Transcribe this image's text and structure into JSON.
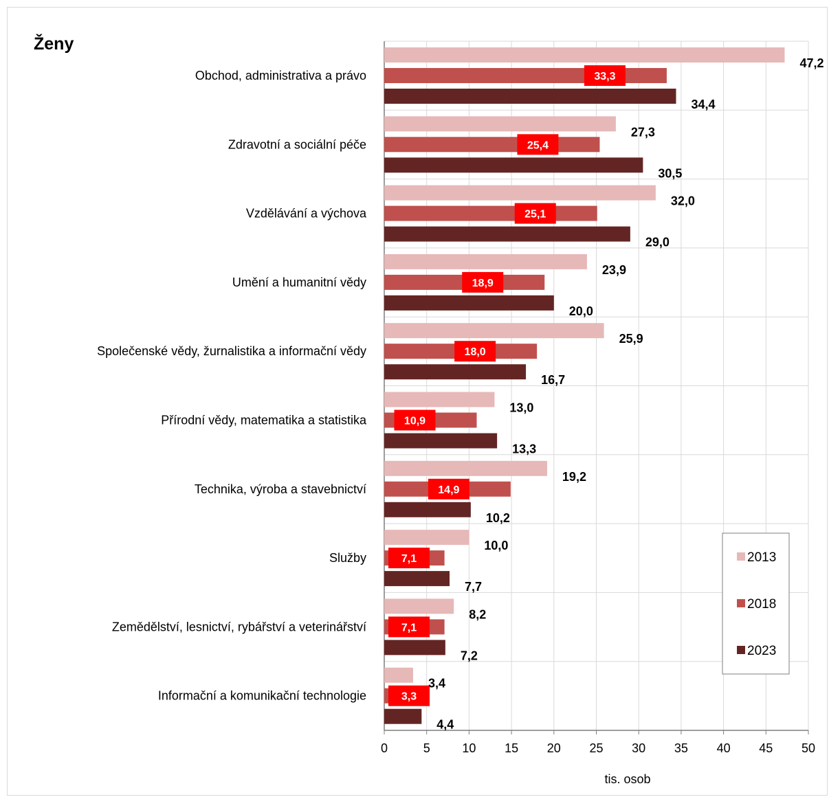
{
  "chart_data": {
    "type": "bar",
    "orientation": "horizontal",
    "title": "Ženy",
    "xlabel": "tis. osob",
    "ylabel": "",
    "xlim": [
      0,
      50
    ],
    "x_ticks": [
      0,
      5,
      10,
      15,
      20,
      25,
      30,
      35,
      40,
      45,
      50
    ],
    "grid": true,
    "legend_position": "right",
    "categories": [
      "Obchod, administrativa a právo",
      "Zdravotní a sociální péče",
      "Vzdělávání a výchova",
      "Umění a humanitní vědy",
      "Společenské vědy, žurnalistika a informační vědy",
      "Přírodní vědy, matematika a statistika",
      "Technika, výroba a stavebnictví",
      "Služby",
      "Zemědělství, lesnictví, rybářství a veterinářství",
      "Informační a komunikační technologie"
    ],
    "series": [
      {
        "name": "2013",
        "color": "#e6b8b8",
        "values": [
          47.2,
          27.3,
          32.0,
          23.9,
          25.9,
          13.0,
          19.2,
          10.0,
          8.2,
          3.4
        ],
        "labels": [
          "47,2",
          "27,3",
          "32,0",
          "23,9",
          "25,9",
          "13,0",
          "19,2",
          "10,0",
          "8,2",
          "3,4"
        ]
      },
      {
        "name": "2018",
        "color": "#c0504d",
        "values": [
          33.3,
          25.4,
          25.1,
          18.9,
          18.0,
          10.9,
          14.9,
          7.1,
          7.1,
          3.3
        ],
        "labels": [
          "33,3",
          "25,4",
          "25,1",
          "18,9",
          "18,0",
          "10,9",
          "14,9",
          "7,1",
          "7,1",
          "3,3"
        ]
      },
      {
        "name": "2023",
        "color": "#632523",
        "values": [
          34.4,
          30.5,
          29.0,
          20.0,
          16.7,
          13.3,
          10.2,
          7.7,
          7.2,
          4.4
        ],
        "labels": [
          "34,4",
          "30,5",
          "29,0",
          "20,0",
          "16,7",
          "13,3",
          "10,2",
          "7,7",
          "7,2",
          "4,4"
        ]
      }
    ],
    "highlight_color": "#ff0000"
  }
}
